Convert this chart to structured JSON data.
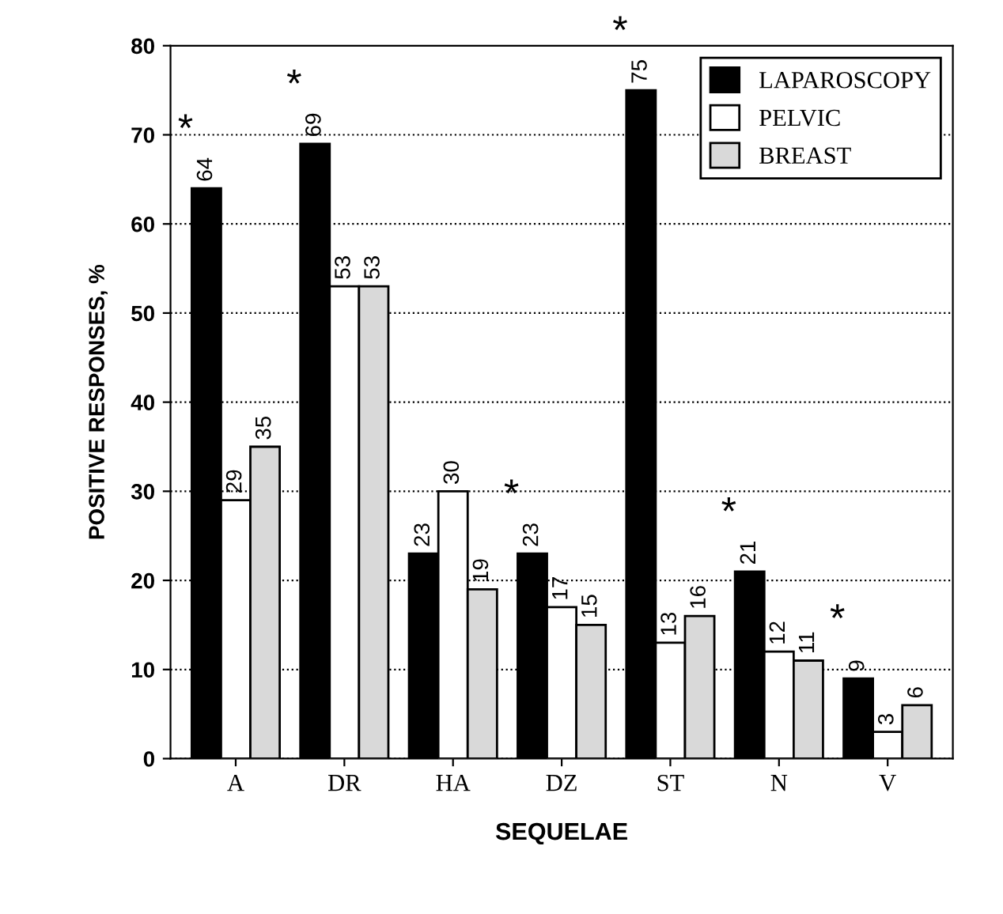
{
  "chart_data": {
    "type": "bar",
    "categories": [
      "A",
      "DR",
      "HA",
      "DZ",
      "ST",
      "N",
      "V"
    ],
    "series": [
      {
        "name": "LAPAROSCOPY",
        "color": "#000000",
        "values": [
          64,
          69,
          23,
          23,
          75,
          21,
          9
        ]
      },
      {
        "name": "PELVIC",
        "color": "#ffffff",
        "values": [
          29,
          53,
          30,
          17,
          13,
          12,
          3
        ]
      },
      {
        "name": "BREAST",
        "color": "#d9d9d9",
        "values": [
          35,
          53,
          19,
          15,
          16,
          11,
          6
        ]
      }
    ],
    "xlabel": "SEQUELAE",
    "ylabel": "POSITIVE RESPONSES, %",
    "ylim": [
      0,
      80
    ],
    "yticks": [
      0,
      10,
      20,
      30,
      40,
      50,
      60,
      70,
      80
    ],
    "grid": "y",
    "legend": "top right",
    "data_labels": true,
    "annotations": [
      "*",
      "*",
      "*",
      "*",
      "*",
      "*"
    ]
  }
}
